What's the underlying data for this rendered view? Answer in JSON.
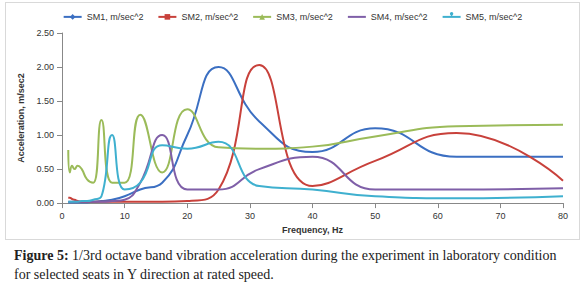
{
  "chart_data": {
    "type": "line",
    "x_label": "Frequency, Hz",
    "y_label": "Acceleration, m/sec2",
    "caption_label": "Figure 5:",
    "caption": "1/3rd octave band vibration acceleration during the experiment in laboratory condition for selected seats in Y direction at rated speed.",
    "x": [
      1,
      1.25,
      1.6,
      2,
      2.5,
      3.15,
      4,
      5,
      6.3,
      8,
      10,
      12.5,
      16,
      20,
      25,
      31.5,
      40,
      50,
      63,
      80
    ],
    "series": [
      {
        "name": "SM1, m/sec^2",
        "color": "#3b6fc2",
        "values": [
          0.01,
          0.01,
          0.01,
          0.01,
          0.01,
          0.01,
          0.01,
          0.02,
          0.03,
          0.05,
          0.1,
          0.2,
          0.3,
          1.0,
          2.0,
          1.2,
          0.75,
          1.1,
          0.68,
          0.68
        ]
      },
      {
        "name": "SM2, m/sec^2",
        "color": "#c8413b",
        "values": [
          0.08,
          0.08,
          0.06,
          0.05,
          0.03,
          0.02,
          0.02,
          0.02,
          0.02,
          0.02,
          0.02,
          0.02,
          0.02,
          0.03,
          0.2,
          2.03,
          0.25,
          0.62,
          1.03,
          0.33
        ]
      },
      {
        "name": "SM3, m/sec^2",
        "color": "#9bbb59",
        "values": [
          0.78,
          0.45,
          0.55,
          0.5,
          0.55,
          0.5,
          0.35,
          0.3,
          1.22,
          0.3,
          0.3,
          1.3,
          0.45,
          1.38,
          0.82,
          0.8,
          0.83,
          0.98,
          1.13,
          1.15
        ]
      },
      {
        "name": "SM4, m/sec^2",
        "color": "#7f5fa8",
        "values": [
          0.02,
          0.02,
          0.02,
          0.02,
          0.02,
          0.02,
          0.02,
          0.02,
          0.02,
          0.03,
          0.05,
          0.3,
          1.0,
          0.2,
          0.2,
          0.5,
          0.68,
          0.2,
          0.2,
          0.22
        ]
      },
      {
        "name": "SM5, m/sec^2",
        "color": "#3fb0cf",
        "values": [
          0.02,
          0.02,
          0.02,
          0.02,
          0.02,
          0.03,
          0.03,
          0.05,
          0.1,
          1.0,
          0.2,
          0.3,
          0.85,
          0.8,
          0.9,
          0.25,
          0.2,
          0.1,
          0.07,
          0.1
        ]
      }
    ],
    "xlim": [
      0,
      80
    ],
    "xticks": [
      0,
      10,
      20,
      30,
      40,
      50,
      60,
      70,
      80
    ],
    "ylim": [
      0,
      2.5
    ],
    "yticks": [
      {
        "value": 0,
        "label": "0.00"
      },
      {
        "value": 0.5,
        "label": "0.50"
      },
      {
        "value": 1,
        "label": "1.00"
      },
      {
        "value": 1.5,
        "label": "1.50"
      },
      {
        "value": 2,
        "label": "2.00"
      },
      {
        "value": 2.5,
        "label": "2.50"
      }
    ],
    "grid": false,
    "legend": "top"
  }
}
